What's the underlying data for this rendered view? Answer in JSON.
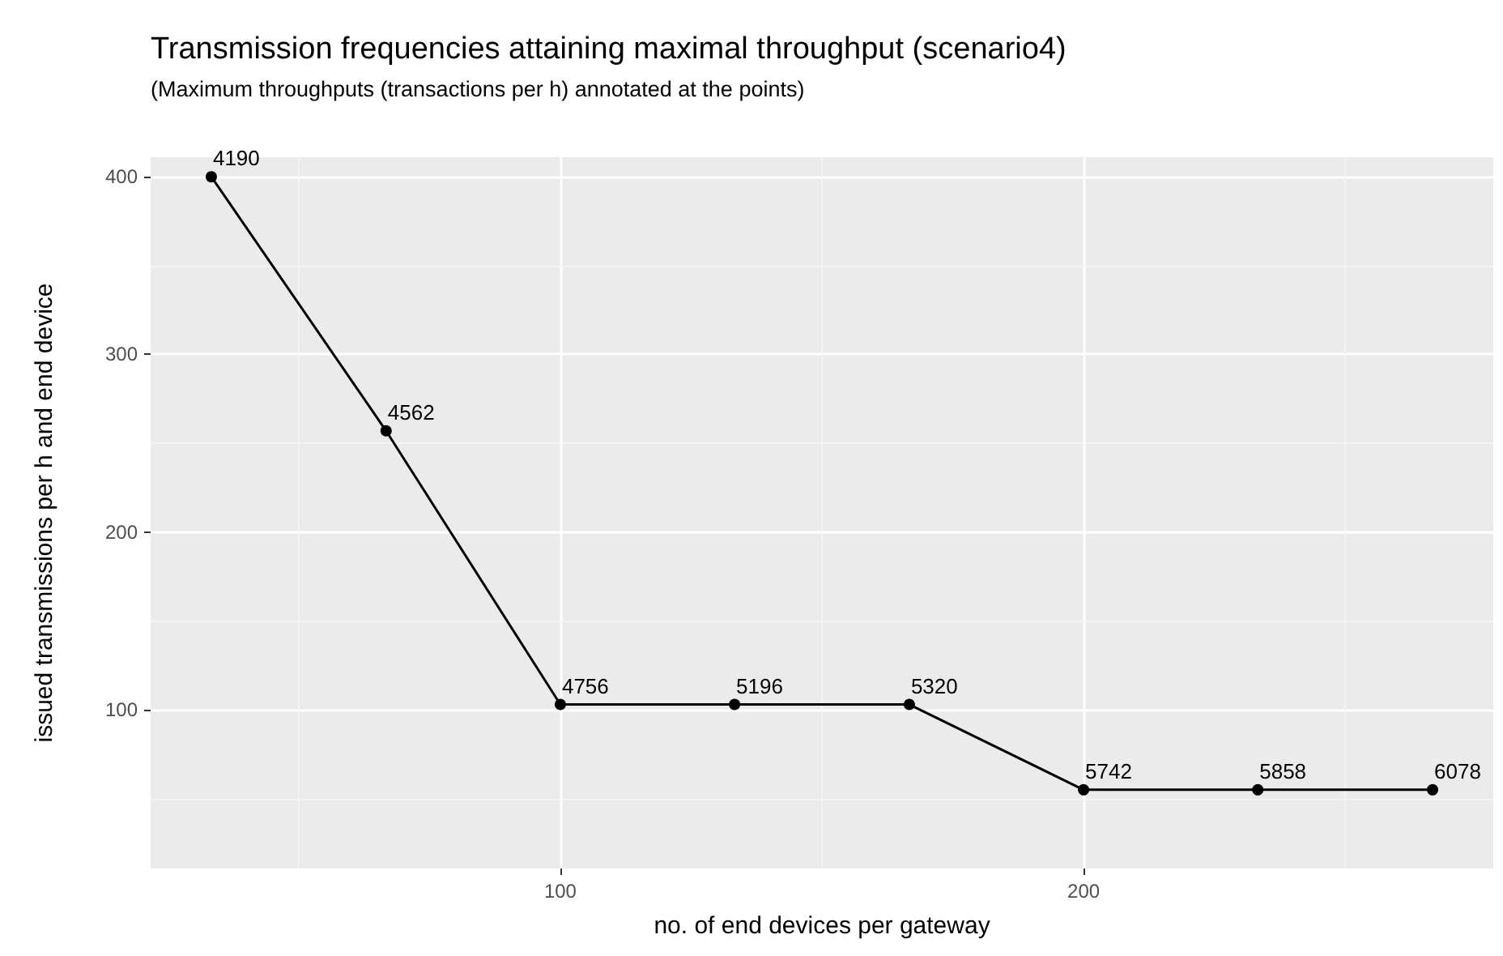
{
  "chart_data": {
    "type": "line",
    "title": "Transmission frequencies attaining maximal throughput (scenario4)",
    "subtitle": "(Maximum throughputs (transactions per h) annotated at the points)",
    "xlabel": "no. of end devices per gateway",
    "ylabel": "issued transmissions per h and end device",
    "x": [
      33.3,
      66.7,
      100,
      133.3,
      166.7,
      200,
      233.3,
      266.7
    ],
    "series": [
      {
        "color": "#000000",
        "values": [
          400,
          257,
          103,
          103,
          103,
          55,
          55,
          55
        ]
      }
    ],
    "annotations": [
      {
        "text": "4190",
        "x": 33.3,
        "y": 400
      },
      {
        "text": "4562",
        "x": 66.7,
        "y": 257
      },
      {
        "text": "4756",
        "x": 100,
        "y": 103
      },
      {
        "text": "5196",
        "x": 133.3,
        "y": 103
      },
      {
        "text": "5320",
        "x": 166.7,
        "y": 103
      },
      {
        "text": "5742",
        "x": 200,
        "y": 55
      },
      {
        "text": "5858",
        "x": 233.3,
        "y": 55
      },
      {
        "text": "6078",
        "x": 266.7,
        "y": 55
      }
    ],
    "xlim": [
      21.7,
      278.3
    ],
    "ylim": [
      10.7,
      411
    ],
    "xticks": [
      100,
      200
    ],
    "yticks": [
      100,
      200,
      300,
      400
    ],
    "grid": true,
    "marker": "circle",
    "line_style": "solid"
  }
}
